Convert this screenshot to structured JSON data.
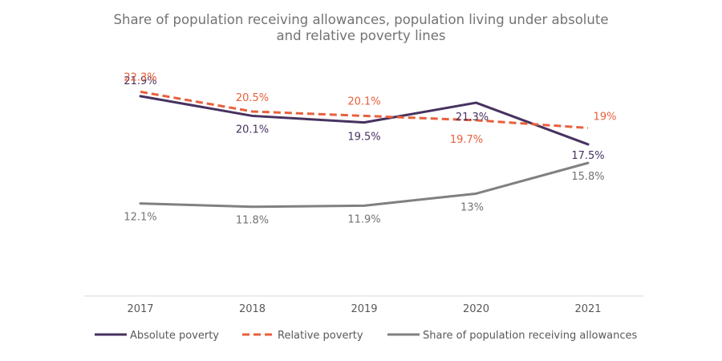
{
  "chart_data": {
    "type": "line",
    "title_lines": [
      "Share of population receiving allowances, population living under absolute",
      "and relative poverty lines"
    ],
    "categories": [
      "2017",
      "2018",
      "2019",
      "2020",
      "2021"
    ],
    "ylim": [
      0,
      25
    ],
    "grid": false,
    "legend_position": "bottom",
    "series": [
      {
        "name": "Absolute poverty",
        "values": [
          21.9,
          20.1,
          19.5,
          21.3,
          17.5
        ],
        "labels": [
          "21.9%",
          "20.1%",
          "19.5%",
          "21.3%",
          "17.5%"
        ],
        "color": "#46325f",
        "dash": "solid"
      },
      {
        "name": "Relative poverty",
        "values": [
          22.3,
          20.5,
          20.1,
          19.7,
          19
        ],
        "labels": [
          "22.3%",
          "20.5%",
          "20.1%",
          "19.7%",
          "19%"
        ],
        "color": "#e8603c",
        "dash": "dashed"
      },
      {
        "name": "Share of population receiving allowances",
        "values": [
          12.1,
          11.8,
          11.9,
          13,
          15.8
        ],
        "labels": [
          "12.1%",
          "11.8%",
          "11.9%",
          "13%",
          "15.8%"
        ],
        "color": "#808080",
        "dash": "solid"
      }
    ]
  }
}
